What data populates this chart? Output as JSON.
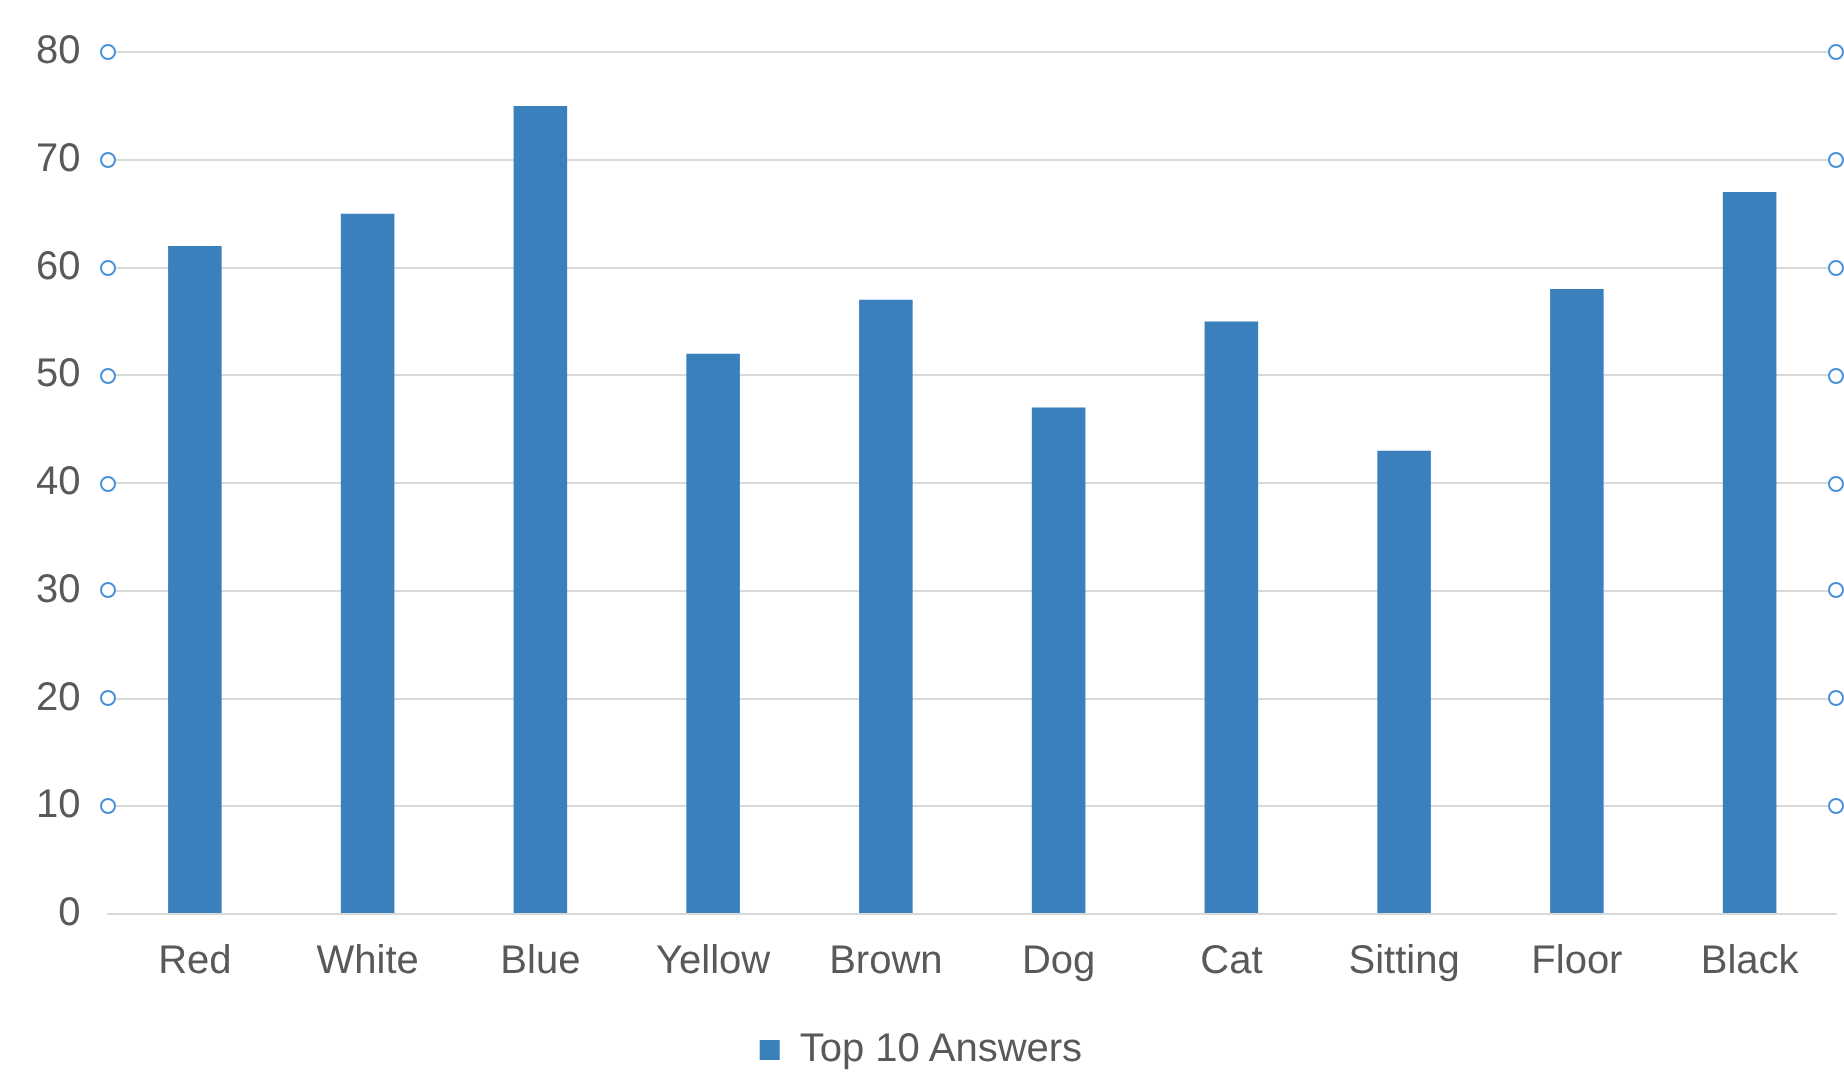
{
  "chart_data": {
    "type": "bar",
    "categories": [
      "Red",
      "White",
      "Blue",
      "Yellow",
      "Brown",
      "Dog",
      "Cat",
      "Sitting",
      "Floor",
      "Black"
    ],
    "series": [
      {
        "name": "Top 10 Answers",
        "color": "#3a80bc",
        "values": [
          62,
          65,
          75,
          52,
          57,
          47,
          55,
          43,
          58,
          67
        ]
      }
    ],
    "ylim": [
      0,
      80
    ],
    "yticks": [
      0,
      10,
      20,
      30,
      40,
      50,
      60,
      70,
      80
    ],
    "grid": "y",
    "legend": "bottom"
  }
}
